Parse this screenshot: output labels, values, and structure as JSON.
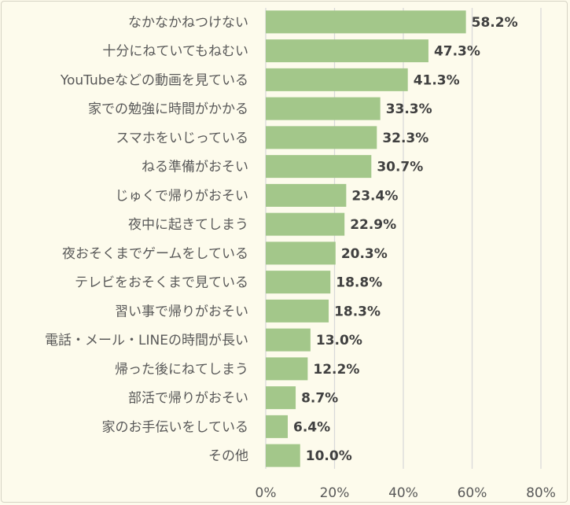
{
  "chart_data": {
    "type": "bar",
    "orientation": "horizontal",
    "title": "",
    "xlabel": "",
    "ylabel": "",
    "xlim": [
      0,
      80
    ],
    "grid": true,
    "legend": "none",
    "bar_color": "#a3c78a",
    "grid_color": "#d9d9d9",
    "categories": [
      "なかなかねつけない",
      "十分にねていてもねむい",
      "YouTubeなどの動画を見ている",
      "家での勉強に時間がかかる",
      "スマホをいじっている",
      "ねる準備がおそい",
      "じゅくで帰りがおそい",
      "夜中に起きてしまう",
      "夜おそくまでゲームをしている",
      "テレビをおそくまで見ている",
      "習い事で帰りがおそい",
      "電話・メール・LINEの時間が長い",
      "帰った後にねてしまう",
      "部活で帰りがおそい",
      "家のお手伝いをしている",
      "その他"
    ],
    "values": [
      58.2,
      47.3,
      41.3,
      33.3,
      32.3,
      30.7,
      23.4,
      22.9,
      20.3,
      18.8,
      18.3,
      13.0,
      12.2,
      8.7,
      6.4,
      10.0
    ],
    "value_labels": [
      "58.2%",
      "47.3%",
      "41.3%",
      "33.3%",
      "32.3%",
      "30.7%",
      "23.4%",
      "22.9%",
      "20.3%",
      "18.8%",
      "18.3%",
      "13.0%",
      "12.2%",
      "8.7%",
      "6.4%",
      "10.0%"
    ],
    "x_ticks": [
      0,
      20,
      40,
      60,
      80
    ],
    "x_tick_labels": [
      "0%",
      "20%",
      "40%",
      "60%",
      "80%"
    ]
  }
}
